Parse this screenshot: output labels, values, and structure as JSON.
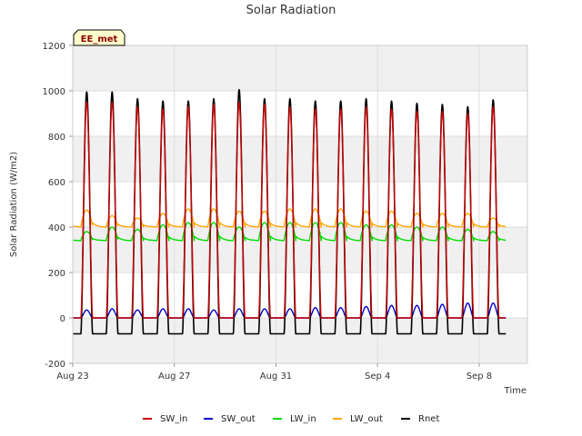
{
  "chart_data": {
    "type": "line",
    "title": "Solar Radiation",
    "xlabel": "Time",
    "ylabel": "Solar Radiation (W/m2)",
    "site_label": "EE_met",
    "ylim": [
      -200,
      1200
    ],
    "yticks": [
      -200,
      0,
      200,
      400,
      600,
      800,
      1000,
      1200
    ],
    "xlim_days": [
      0,
      17.9
    ],
    "xticks": [
      {
        "label": "Aug 23",
        "day": 0
      },
      {
        "label": "Aug 27",
        "day": 4
      },
      {
        "label": "Aug 31",
        "day": 8
      },
      {
        "label": "Sep 4",
        "day": 12
      },
      {
        "label": "Sep 8",
        "day": 16
      }
    ],
    "x_start_date": "Aug 22 23:00",
    "grid": true,
    "legend_position": "bottom-center",
    "daily_peaks": [
      {
        "day": "Aug 23",
        "sw_in": 950,
        "sw_out": 35,
        "lw_in": 380,
        "lw_out": 475,
        "rnet": 995
      },
      {
        "day": "Aug 24",
        "sw_in": 950,
        "sw_out": 40,
        "lw_in": 400,
        "lw_out": 450,
        "rnet": 995
      },
      {
        "day": "Aug 25",
        "sw_in": 930,
        "sw_out": 35,
        "lw_in": 390,
        "lw_out": 440,
        "rnet": 965
      },
      {
        "day": "Aug 26",
        "sw_in": 920,
        "sw_out": 40,
        "lw_in": 410,
        "lw_out": 460,
        "rnet": 955
      },
      {
        "day": "Aug 27",
        "sw_in": 930,
        "sw_out": 40,
        "lw_in": 420,
        "lw_out": 480,
        "rnet": 955
      },
      {
        "day": "Aug 28",
        "sw_in": 940,
        "sw_out": 35,
        "lw_in": 420,
        "lw_out": 480,
        "rnet": 965
      },
      {
        "day": "Aug 29",
        "sw_in": 950,
        "sw_out": 40,
        "lw_in": 400,
        "lw_out": 470,
        "rnet": 1005
      },
      {
        "day": "Aug 30",
        "sw_in": 940,
        "sw_out": 40,
        "lw_in": 420,
        "lw_out": 470,
        "rnet": 965
      },
      {
        "day": "Aug 31",
        "sw_in": 930,
        "sw_out": 40,
        "lw_in": 420,
        "lw_out": 480,
        "rnet": 965
      },
      {
        "day": "Sep 1",
        "sw_in": 920,
        "sw_out": 45,
        "lw_in": 420,
        "lw_out": 480,
        "rnet": 955
      },
      {
        "day": "Sep 2",
        "sw_in": 920,
        "sw_out": 45,
        "lw_in": 420,
        "lw_out": 480,
        "rnet": 955
      },
      {
        "day": "Sep 3",
        "sw_in": 930,
        "sw_out": 50,
        "lw_in": 410,
        "lw_out": 470,
        "rnet": 965
      },
      {
        "day": "Sep 4",
        "sw_in": 920,
        "sw_out": 55,
        "lw_in": 410,
        "lw_out": 470,
        "rnet": 955
      },
      {
        "day": "Sep 5",
        "sw_in": 910,
        "sw_out": 55,
        "lw_in": 400,
        "lw_out": 460,
        "rnet": 945
      },
      {
        "day": "Sep 6",
        "sw_in": 910,
        "sw_out": 60,
        "lw_in": 400,
        "lw_out": 460,
        "rnet": 940
      },
      {
        "day": "Sep 7",
        "sw_in": 900,
        "sw_out": 65,
        "lw_in": 390,
        "lw_out": 460,
        "rnet": 930
      },
      {
        "day": "Sep 8",
        "sw_in": 930,
        "sw_out": 65,
        "lw_in": 380,
        "lw_out": 440,
        "rnet": 960
      }
    ],
    "night_values": {
      "sw_in": 0,
      "sw_out": 0,
      "lw_in": 340,
      "lw_out": 400,
      "rnet": -70
    },
    "series": [
      {
        "name": "SW_in",
        "color": "#cc0000"
      },
      {
        "name": "SW_out",
        "color": "#0000cc"
      },
      {
        "name": "LW_in",
        "color": "#00dd00"
      },
      {
        "name": "LW_out",
        "color": "#ffa500"
      },
      {
        "name": "Rnet",
        "color": "#000000"
      }
    ],
    "colors": {
      "band": "#f0f0f0",
      "grid": "#dddddd",
      "axis": "#cccccc",
      "site_label_bg": "#ffffcc"
    }
  }
}
